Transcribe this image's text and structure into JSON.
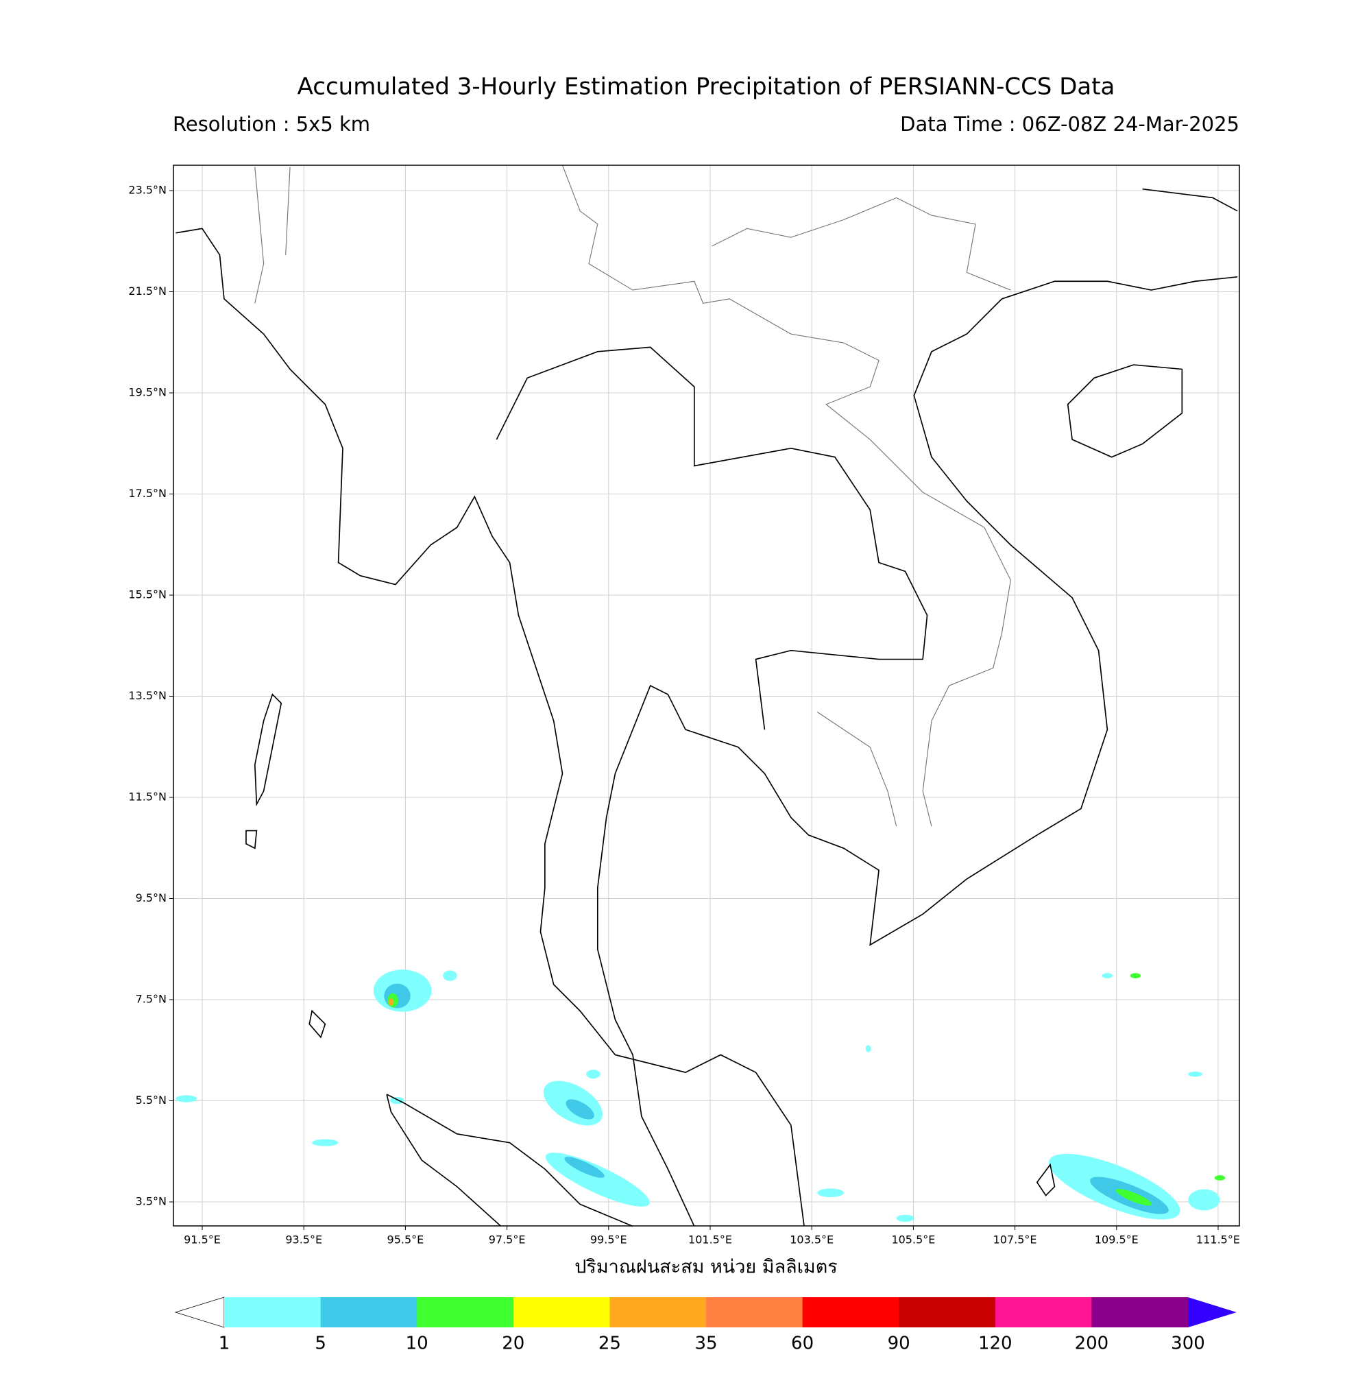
{
  "header": {
    "title": "Accumulated 3-Hourly Estimation Precipitation of PERSIANN-CCS Data",
    "resolution": "Resolution : 5x5 km",
    "data_time": "Data Time : 06Z-08Z 24-Mar-2025"
  },
  "map": {
    "lon_ticks": [
      "91.5°E",
      "93.5°E",
      "95.5°E",
      "97.5°E",
      "99.5°E",
      "101.5°E",
      "103.5°E",
      "105.5°E",
      "107.5°E",
      "109.5°E",
      "111.5°E"
    ],
    "lat_ticks": [
      "23.5°N",
      "21.5°N",
      "19.5°N",
      "17.5°N",
      "15.5°N",
      "13.5°N",
      "11.5°N",
      "9.5°N",
      "7.5°N",
      "5.5°N",
      "3.5°N"
    ],
    "xlabel": "ปริมาณฝนสะสม หน่วย มิลลิเมตร"
  },
  "colorbar": {
    "labels": [
      "1",
      "5",
      "10",
      "20",
      "25",
      "35",
      "60",
      "90",
      "120",
      "200",
      "300"
    ],
    "colors": [
      "#80ffff",
      "#40c8e8",
      "#40ff30",
      "#ffff00",
      "#ffa820",
      "#ff8040",
      "#ff0000",
      "#c80000",
      "#ff1493",
      "#8b008b"
    ],
    "under_color": "#ffffff",
    "over_color": "#3300ff"
  }
}
